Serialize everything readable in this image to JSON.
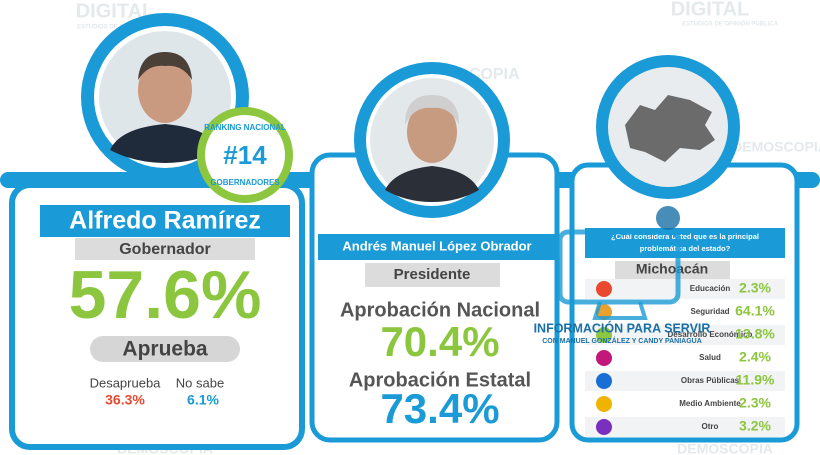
{
  "watermarks": {
    "brand": "DIGITAL",
    "tagline": "ESTUDIOS DE OPINIÓN PÚBLICA",
    "name": "DEMOSCOPIA"
  },
  "governor": {
    "badge_top": "RANKING NACIONAL",
    "badge_rank": "#14",
    "badge_bottom": "GOBERNADORES",
    "name": "Alfredo Ramírez",
    "role": "Gobernador",
    "approval": "57.6%",
    "approval_label": "Aprueba",
    "disapprove_label": "Desaprueba",
    "disapprove": "36.3%",
    "unknown_label": "No sabe",
    "unknown": "6.1%"
  },
  "president": {
    "name": "Andrés Manuel López Obrador",
    "role": "Presidente",
    "national_label": "Aprobación Nacional",
    "national": "70.4%",
    "state_label": "Aprobación Estatal",
    "state": "73.4%"
  },
  "survey": {
    "question_line1": "¿Cuál considera usted que es la principal",
    "question_line2": "problemática del estado?",
    "state": "Michoacán",
    "rows": [
      {
        "label": "Educación",
        "value": "2.3%"
      },
      {
        "label": "Seguridad",
        "value": "64.1%"
      },
      {
        "label": "Desarrollo Económico",
        "value": "13.8%"
      },
      {
        "label": "Salud",
        "value": "2.4%"
      },
      {
        "label": "Obras Públicas",
        "value": "11.9%"
      },
      {
        "label": "Medio Ambiente",
        "value": "2.3%"
      },
      {
        "label": "Otro",
        "value": "3.2%"
      }
    ]
  },
  "overlay": {
    "title": "INFORMACIÓN PARA SERVIR",
    "subtitle": "CON MANUEL GONZÁLEZ Y CANDY PANIAGUA"
  }
}
